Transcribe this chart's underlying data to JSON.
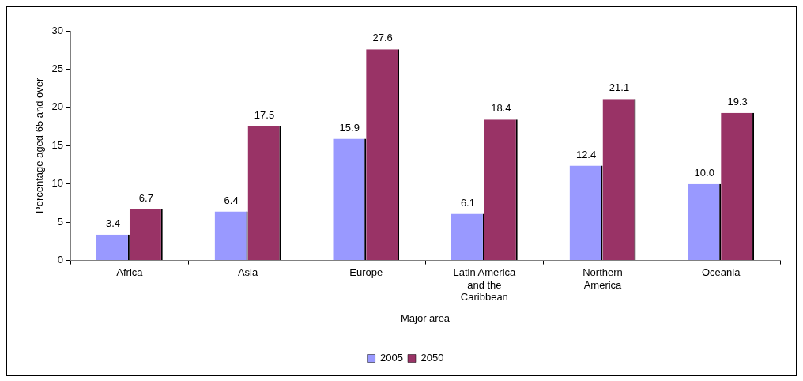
{
  "chart_data": {
    "type": "bar",
    "xlabel": "Major area",
    "ylabel": "Percentage aged 65 and over",
    "categories": [
      "Africa",
      "Asia",
      "Europe",
      "Latin America and the Caribbean",
      "Northern America",
      "Oceania"
    ],
    "series": [
      {
        "name": "2005",
        "color": "#9999ff",
        "values": [
          3.4,
          6.4,
          15.9,
          6.1,
          12.4,
          10.0
        ],
        "value_labels": [
          "3.4",
          "6.4",
          "15.9",
          "6.1",
          "12.4",
          "10.0"
        ]
      },
      {
        "name": "2050",
        "color": "#993366",
        "values": [
          6.7,
          17.5,
          27.6,
          18.4,
          21.1,
          19.3
        ],
        "value_labels": [
          "6.7",
          "17.5",
          "27.6",
          "18.4",
          "21.1",
          "19.3"
        ]
      }
    ],
    "ylim": [
      0,
      30
    ],
    "yticks": [
      0,
      5,
      10,
      15,
      20,
      25,
      30
    ],
    "grid": false,
    "legend": "bottom"
  }
}
